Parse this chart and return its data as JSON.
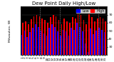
{
  "title": "Dew Point Daily High/Low",
  "left_label": "Milwaukee, WI",
  "legend_labels": [
    "Low",
    "High"
  ],
  "ylim": [
    20,
    80
  ],
  "yticks": [
    30,
    40,
    50,
    60,
    70
  ],
  "background_color": "#ffffff",
  "plot_bg_color": "#000000",
  "grid_color": "#404040",
  "days": [
    1,
    2,
    3,
    4,
    5,
    6,
    7,
    8,
    9,
    10,
    11,
    12,
    13,
    14,
    15,
    16,
    17,
    18,
    19,
    20,
    21,
    22,
    23,
    24,
    25,
    26,
    27,
    28,
    29,
    30,
    31
  ],
  "highs": [
    60,
    62,
    58,
    64,
    68,
    70,
    68,
    65,
    63,
    60,
    67,
    70,
    68,
    63,
    58,
    65,
    62,
    60,
    67,
    65,
    75,
    70,
    63,
    58,
    73,
    67,
    62,
    65,
    67,
    65,
    62
  ],
  "lows": [
    45,
    50,
    42,
    48,
    54,
    58,
    55,
    50,
    47,
    44,
    54,
    58,
    55,
    49,
    44,
    51,
    49,
    44,
    54,
    51,
    60,
    55,
    49,
    34,
    24,
    53,
    46,
    50,
    54,
    51,
    48
  ],
  "high_color": "#ff0000",
  "low_color": "#0000ff",
  "bar_width": 0.42,
  "title_fontsize": 5.0,
  "tick_fontsize": 3.2,
  "legend_fontsize": 3.5,
  "vline_color": "#888888",
  "vline_positions": [
    6.5,
    13.5,
    20.5,
    27.5
  ]
}
